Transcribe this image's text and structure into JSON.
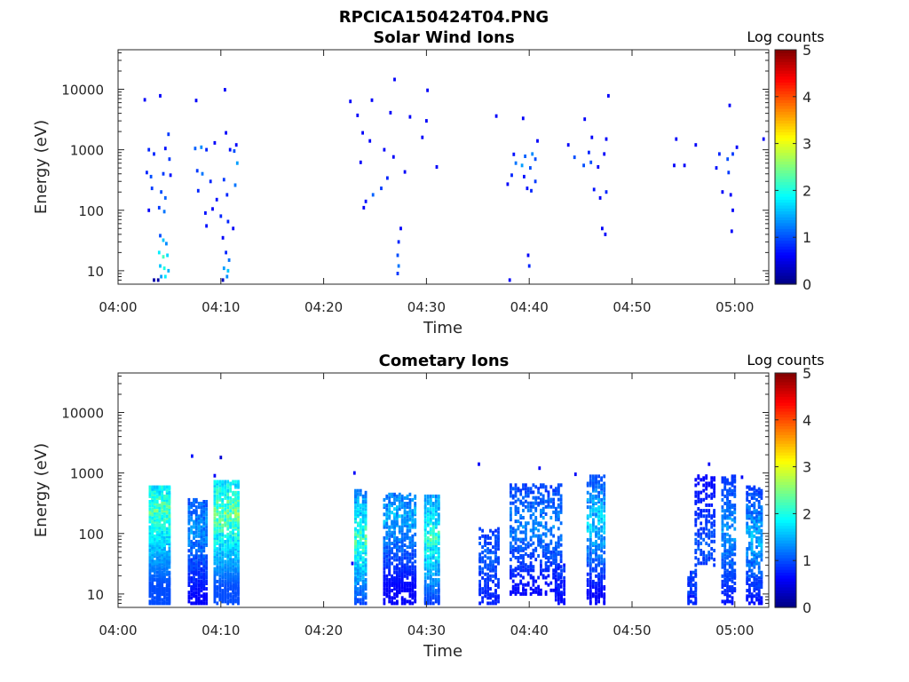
{
  "figure_title": "RPCICA150424T04.PNG",
  "chart_data": [
    {
      "type": "heatmap",
      "title": "Solar Wind Ions",
      "xlabel": "Time",
      "ylabel": "Energy (eV)",
      "x_tick_labels": [
        "04:00",
        "04:10",
        "04:20",
        "04:30",
        "04:40",
        "04:50",
        "05:00"
      ],
      "x_ticks_min": [
        0,
        10,
        20,
        30,
        40,
        50,
        60
      ],
      "xlim_min": [
        0,
        63.3
      ],
      "y_scale": "log",
      "y_tick_labels": [
        "10",
        "100",
        "1000",
        "10000"
      ],
      "y_ticks": [
        10,
        100,
        1000,
        10000
      ],
      "ylim": [
        6,
        45000
      ],
      "colorbar": {
        "label": "Log counts",
        "ticks": [
          "0",
          "1",
          "2",
          "3",
          "4",
          "5"
        ],
        "range": [
          0,
          5
        ],
        "colormap": "jet"
      },
      "cells": [
        [
          2.6,
          6700,
          0.6
        ],
        [
          4.1,
          7800,
          0.6
        ],
        [
          7.6,
          6500,
          0.6
        ],
        [
          10.4,
          9800,
          0.6
        ],
        [
          4.9,
          1800,
          0.9
        ],
        [
          9.4,
          1300,
          0.6
        ],
        [
          10.5,
          1900,
          0.6
        ],
        [
          11.5,
          1200,
          0.6
        ],
        [
          3.0,
          1000,
          0.8
        ],
        [
          3.5,
          850,
          0.8
        ],
        [
          4.6,
          1050,
          0.7
        ],
        [
          5.0,
          700,
          0.9
        ],
        [
          7.5,
          1050,
          1.1
        ],
        [
          8.1,
          1100,
          1.3
        ],
        [
          8.6,
          1000,
          0.8
        ],
        [
          10.9,
          1000,
          0.7
        ],
        [
          11.3,
          950,
          1.0
        ],
        [
          11.6,
          600,
          1.4
        ],
        [
          2.8,
          420,
          0.8
        ],
        [
          3.2,
          360,
          1.0
        ],
        [
          4.4,
          400,
          0.9
        ],
        [
          5.1,
          380,
          0.7
        ],
        [
          7.7,
          450,
          0.9
        ],
        [
          8.2,
          400,
          1.2
        ],
        [
          9.0,
          300,
          0.8
        ],
        [
          10.3,
          320,
          0.9
        ],
        [
          11.4,
          260,
          1.2
        ],
        [
          3.3,
          230,
          0.9
        ],
        [
          4.2,
          200,
          1.0
        ],
        [
          4.6,
          160,
          1.1
        ],
        [
          7.8,
          210,
          0.8
        ],
        [
          9.6,
          150,
          0.7
        ],
        [
          10.6,
          180,
          0.8
        ],
        [
          3.0,
          100,
          0.6
        ],
        [
          4.0,
          110,
          0.9
        ],
        [
          4.5,
          95,
          1.2
        ],
        [
          8.5,
          90,
          0.7
        ],
        [
          9.2,
          105,
          0.6
        ],
        [
          10.0,
          80,
          0.8
        ],
        [
          8.6,
          55,
          0.7
        ],
        [
          10.7,
          65,
          0.8
        ],
        [
          11.2,
          50,
          0.6
        ],
        [
          4.1,
          38,
          1.0
        ],
        [
          4.4,
          32,
          1.6
        ],
        [
          4.7,
          28,
          1.3
        ],
        [
          4.0,
          20,
          1.8
        ],
        [
          4.4,
          17,
          2.2
        ],
        [
          4.8,
          18,
          1.7
        ],
        [
          4.1,
          12,
          1.6
        ],
        [
          4.5,
          11,
          2.0
        ],
        [
          4.9,
          10,
          1.5
        ],
        [
          4.2,
          8,
          1.4
        ],
        [
          4.6,
          8,
          1.8
        ],
        [
          3.5,
          7,
          0.2
        ],
        [
          3.9,
          7,
          0.2
        ],
        [
          10.2,
          35,
          0.6
        ],
        [
          10.5,
          20,
          0.8
        ],
        [
          10.8,
          15,
          1.2
        ],
        [
          10.3,
          11,
          1.4
        ],
        [
          10.7,
          10,
          1.6
        ],
        [
          10.6,
          8,
          1.3
        ],
        [
          10.2,
          7,
          0.3
        ],
        [
          22.6,
          6300,
          0.6
        ],
        [
          24.7,
          6600,
          0.6
        ],
        [
          26.9,
          14500,
          0.6
        ],
        [
          30.1,
          9600,
          0.6
        ],
        [
          23.3,
          3700,
          0.6
        ],
        [
          26.5,
          4100,
          0.6
        ],
        [
          28.4,
          3500,
          0.6
        ],
        [
          30.0,
          3000,
          0.6
        ],
        [
          23.8,
          1900,
          0.6
        ],
        [
          24.5,
          1400,
          0.6
        ],
        [
          29.6,
          1600,
          0.6
        ],
        [
          25.9,
          1000,
          0.6
        ],
        [
          23.6,
          620,
          0.6
        ],
        [
          26.8,
          760,
          0.6
        ],
        [
          27.9,
          430,
          0.6
        ],
        [
          31.0,
          520,
          0.6
        ],
        [
          26.2,
          340,
          0.8
        ],
        [
          25.6,
          230,
          0.9
        ],
        [
          24.8,
          180,
          1.1
        ],
        [
          24.1,
          140,
          0.7
        ],
        [
          23.9,
          110,
          0.6
        ],
        [
          27.5,
          50,
          0.6
        ],
        [
          27.3,
          30,
          0.8
        ],
        [
          27.2,
          18,
          1.0
        ],
        [
          27.3,
          12,
          1.2
        ],
        [
          27.2,
          9,
          0.9
        ],
        [
          36.8,
          3600,
          0.6
        ],
        [
          39.4,
          3300,
          0.6
        ],
        [
          40.8,
          1400,
          0.6
        ],
        [
          38.5,
          840,
          0.7
        ],
        [
          39.6,
          780,
          1.1
        ],
        [
          40.3,
          850,
          1.3
        ],
        [
          40.6,
          700,
          1.0
        ],
        [
          38.7,
          600,
          1.2
        ],
        [
          39.3,
          550,
          1.4
        ],
        [
          40.1,
          500,
          1.0
        ],
        [
          38.3,
          380,
          0.8
        ],
        [
          39.5,
          360,
          0.7
        ],
        [
          40.6,
          300,
          0.9
        ],
        [
          37.9,
          270,
          0.6
        ],
        [
          39.8,
          230,
          0.7
        ],
        [
          40.2,
          210,
          0.8
        ],
        [
          39.9,
          18,
          0.6
        ],
        [
          40.0,
          12,
          0.8
        ],
        [
          38.1,
          7,
          0.6
        ],
        [
          45.4,
          3200,
          0.6
        ],
        [
          46.1,
          1600,
          0.6
        ],
        [
          47.5,
          1500,
          0.6
        ],
        [
          43.8,
          1200,
          0.6
        ],
        [
          45.8,
          900,
          0.8
        ],
        [
          47.3,
          850,
          0.6
        ],
        [
          44.4,
          750,
          1.0
        ],
        [
          46.0,
          620,
          1.0
        ],
        [
          45.3,
          550,
          1.0
        ],
        [
          46.7,
          520,
          0.6
        ],
        [
          46.3,
          220,
          0.7
        ],
        [
          47.5,
          200,
          0.8
        ],
        [
          46.9,
          160,
          0.6
        ],
        [
          47.1,
          50,
          0.6
        ],
        [
          47.4,
          40,
          0.6
        ],
        [
          47.7,
          7800,
          0.6
        ],
        [
          54.3,
          1500,
          0.6
        ],
        [
          56.2,
          1200,
          0.6
        ],
        [
          58.5,
          850,
          0.8
        ],
        [
          59.3,
          700,
          1.0
        ],
        [
          59.8,
          850,
          0.9
        ],
        [
          54.1,
          550,
          0.6
        ],
        [
          55.1,
          550,
          0.6
        ],
        [
          58.2,
          500,
          0.7
        ],
        [
          59.4,
          420,
          0.9
        ],
        [
          58.8,
          200,
          0.6
        ],
        [
          59.6,
          180,
          0.6
        ],
        [
          59.8,
          100,
          0.6
        ],
        [
          59.7,
          45,
          0.6
        ],
        [
          59.5,
          5400,
          0.6
        ],
        [
          60.2,
          1100,
          0.6
        ],
        [
          62.8,
          1500,
          0.6
        ]
      ]
    },
    {
      "type": "heatmap",
      "title": "Cometary Ions",
      "xlabel": "Time",
      "ylabel": "Energy (eV)",
      "x_tick_labels": [
        "04:00",
        "04:10",
        "04:20",
        "04:30",
        "04:40",
        "04:50",
        "05:00"
      ],
      "x_ticks_min": [
        0,
        10,
        20,
        30,
        40,
        50,
        60
      ],
      "xlim_min": [
        0,
        63.3
      ],
      "y_scale": "log",
      "y_tick_labels": [
        "10",
        "100",
        "1000",
        "10000"
      ],
      "y_ticks": [
        10,
        100,
        1000,
        10000
      ],
      "ylim": [
        6,
        45000
      ],
      "colorbar": {
        "label": "Log counts",
        "ticks": [
          "0",
          "1",
          "2",
          "3",
          "4",
          "5"
        ],
        "range": [
          0,
          5
        ],
        "colormap": "jet"
      },
      "clusters": [
        [
          3.1,
          5.0,
          7,
          600,
          1.0,
          2.6,
          240,
          0.8
        ],
        [
          6.9,
          8.6,
          7,
          350,
          0.6,
          1.6,
          130,
          0.65
        ],
        [
          9.4,
          11.7,
          7,
          700,
          1.0,
          2.8,
          220,
          0.75
        ],
        [
          23.1,
          24.1,
          7,
          500,
          0.8,
          2.6,
          80,
          0.75
        ],
        [
          25.9,
          28.9,
          7,
          450,
          0.6,
          1.8,
          200,
          0.55
        ],
        [
          29.9,
          31.2,
          7,
          400,
          0.8,
          2.5,
          90,
          0.75
        ],
        [
          35.2,
          37.0,
          7,
          120,
          0.6,
          1.2,
          45,
          0.45
        ],
        [
          38.2,
          43.1,
          10,
          650,
          0.6,
          1.5,
          150,
          0.35
        ],
        [
          42.6,
          43.4,
          7,
          30,
          0.4,
          1.0,
          25,
          0.55
        ],
        [
          45.7,
          47.3,
          7,
          900,
          0.6,
          2.0,
          160,
          0.55
        ],
        [
          55.5,
          56.2,
          7,
          25,
          0.4,
          1.2,
          20,
          0.6
        ],
        [
          56.2,
          58.0,
          30,
          900,
          0.6,
          1.2,
          60,
          0.35
        ],
        [
          58.8,
          60.0,
          7,
          900,
          0.7,
          1.6,
          110,
          0.5
        ],
        [
          61.2,
          62.6,
          7,
          600,
          0.6,
          1.8,
          90,
          0.55
        ]
      ],
      "cells": [
        [
          7.2,
          1900,
          0.7
        ],
        [
          23.0,
          1000,
          0.6
        ],
        [
          35.1,
          1400,
          0.6
        ],
        [
          41.0,
          1200,
          0.6
        ],
        [
          44.5,
          950,
          0.6
        ],
        [
          57.5,
          1400,
          0.6
        ],
        [
          60.7,
          850,
          0.6
        ],
        [
          9.4,
          900,
          0.6
        ],
        [
          10.0,
          1800,
          0.4
        ],
        [
          22.8,
          32,
          0.6
        ]
      ]
    }
  ]
}
